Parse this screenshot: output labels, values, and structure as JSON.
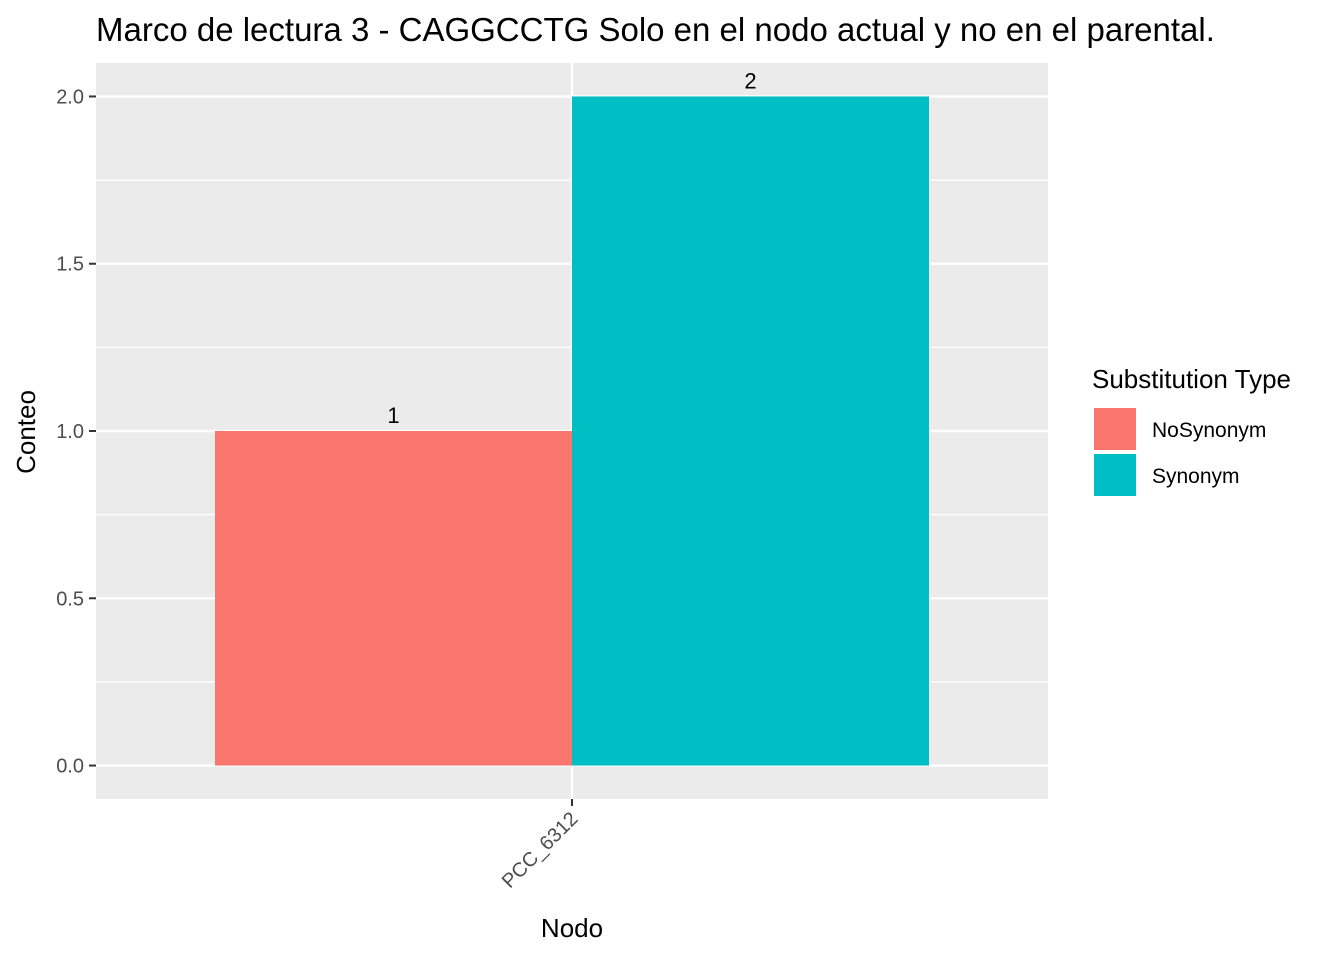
{
  "chart_data": {
    "type": "bar",
    "title": "Marco de lectura 3 - CAGGCCTG Solo en el nodo actual y no en el parental.",
    "xlabel": "Nodo",
    "ylabel": "Conteo",
    "categories": [
      "PCC_6312"
    ],
    "series": [
      {
        "name": "NoSynonym",
        "values": [
          1
        ],
        "color": "#F8766D"
      },
      {
        "name": "Synonym",
        "values": [
          2
        ],
        "color": "#00BFC4"
      }
    ],
    "ylim": [
      -0.1,
      2.1
    ],
    "yticks": [
      0.0,
      0.5,
      1.0,
      1.5,
      2.0
    ],
    "ytick_labels": [
      "0.0",
      "0.5",
      "1.0",
      "1.5",
      "2.0"
    ],
    "data_labels": [
      "1",
      "2"
    ],
    "legend": {
      "title": "Substitution Type",
      "position": "right",
      "items": [
        "NoSynonym",
        "Synonym"
      ]
    },
    "grid": true,
    "panel_color": "#EBEBEB",
    "grid_color": "#FFFFFF",
    "tick_color": "#333333"
  }
}
